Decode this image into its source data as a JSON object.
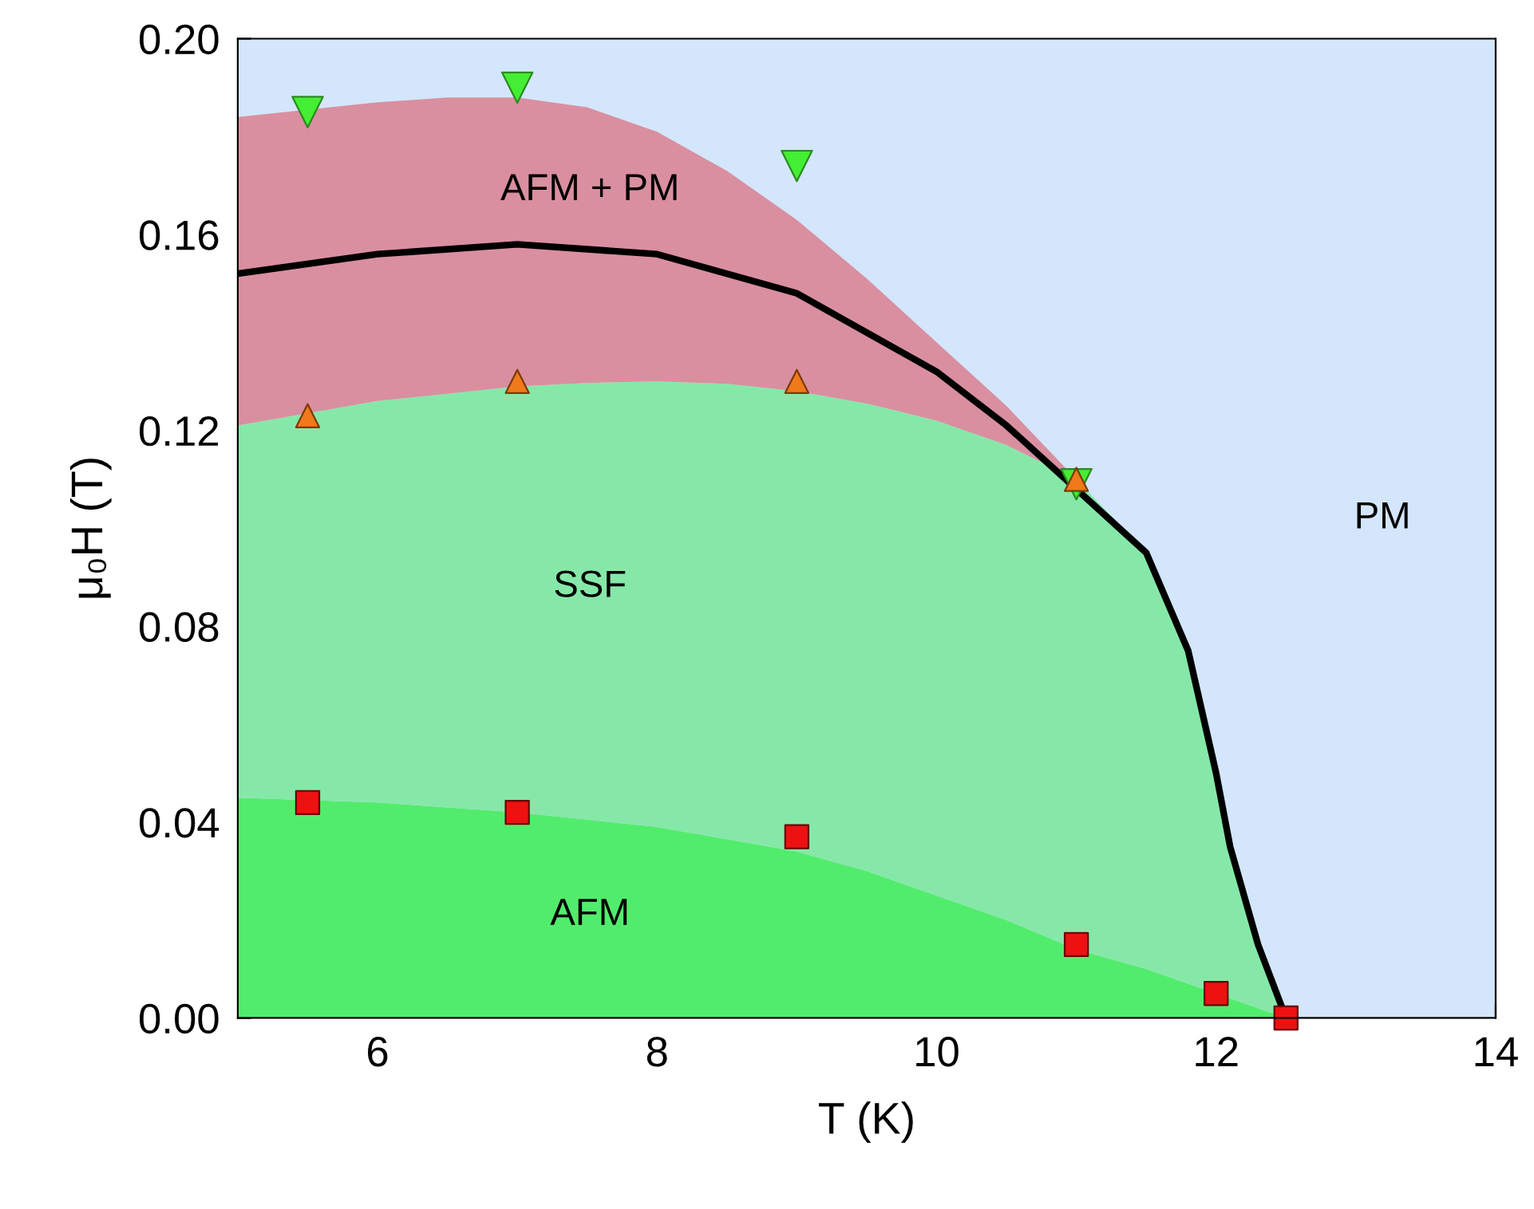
{
  "chart_data": {
    "type": "area",
    "xlabel": "T (K)",
    "ylabel": "μ₀H (T)",
    "xlim": [
      5,
      14
    ],
    "xticks": [
      6,
      8,
      10,
      12,
      14
    ],
    "ylim": [
      0,
      0.2
    ],
    "yticks": [
      {
        "value": 0,
        "label": "0.00"
      },
      {
        "value": 0.04,
        "label": "0.04"
      },
      {
        "value": 0.08,
        "label": "0.08"
      },
      {
        "value": 0.12,
        "label": "0.12"
      },
      {
        "value": 0.16,
        "label": "0.16"
      },
      {
        "value": 0.2,
        "label": "0.20"
      }
    ],
    "grid": false,
    "legend": false,
    "stacked": true,
    "x": [
      5,
      6,
      6.5,
      7,
      7.5,
      8,
      8.5,
      9,
      9.5,
      10,
      10.5,
      11,
      11.5,
      11.8,
      12,
      12.1,
      12.3,
      12.5
    ],
    "bands": [
      {
        "axis": "y",
        "from": 0,
        "to": 0.2,
        "color": "#d4e6fb"
      }
    ],
    "series": [
      {
        "color": "#52ec6c",
        "values": [
          0.045,
          0.044,
          0.043,
          0.042,
          0.0405,
          0.039,
          0.0365,
          0.034,
          0.03,
          0.025,
          0.02,
          0.014,
          0.01,
          0.007,
          0.005,
          0.004,
          0.002,
          0
        ]
      },
      {
        "color": "#86e8a8",
        "values": [
          0.076,
          0.082,
          0.0845,
          0.087,
          0.0892,
          0.091,
          0.093,
          0.094,
          0.0955,
          0.097,
          0.097,
          0.096,
          0.085,
          0.068,
          0.045,
          0.031,
          0.013,
          0
        ]
      },
      {
        "color": "#d98fa0",
        "values": [
          0.063,
          0.061,
          0.0605,
          0.059,
          0.0563,
          0.051,
          0.0435,
          0.035,
          0.0255,
          0.016,
          0.008,
          0,
          null,
          null,
          null,
          null,
          null,
          null
        ]
      },
      {
        "type": "line",
        "color": "#000000",
        "x": [
          5,
          6,
          7,
          8,
          9,
          10,
          10.5,
          11.5,
          11.8,
          12,
          12.1,
          12.3,
          12.5
        ],
        "values": [
          0.152,
          0.156,
          0.158,
          0.156,
          0.148,
          0.132,
          0.121,
          0.095,
          0.075,
          0.05,
          0.035,
          0.015,
          0
        ]
      },
      {
        "type": "scatter",
        "color": "#44ee33",
        "marker": "triangle_down",
        "x": [
          5.5,
          7,
          9,
          11
        ],
        "values": [
          0.185,
          0.19,
          0.174,
          0.109
        ]
      },
      {
        "type": "scatter",
        "color": "#f07a1a",
        "marker": "triangle",
        "x": [
          5.5,
          7,
          9,
          11
        ],
        "values": [
          0.123,
          0.13,
          0.13,
          0.11
        ]
      },
      {
        "type": "scatter",
        "color": "#ee1111",
        "marker": "square",
        "x": [
          5.5,
          7,
          9,
          11,
          12,
          12.5
        ],
        "values": [
          0.044,
          0.042,
          0.037,
          0.015,
          0.005,
          0
        ]
      }
    ],
    "annotations": [
      "AFM + PM",
      "SSF",
      "AFM",
      "PM"
    ]
  }
}
